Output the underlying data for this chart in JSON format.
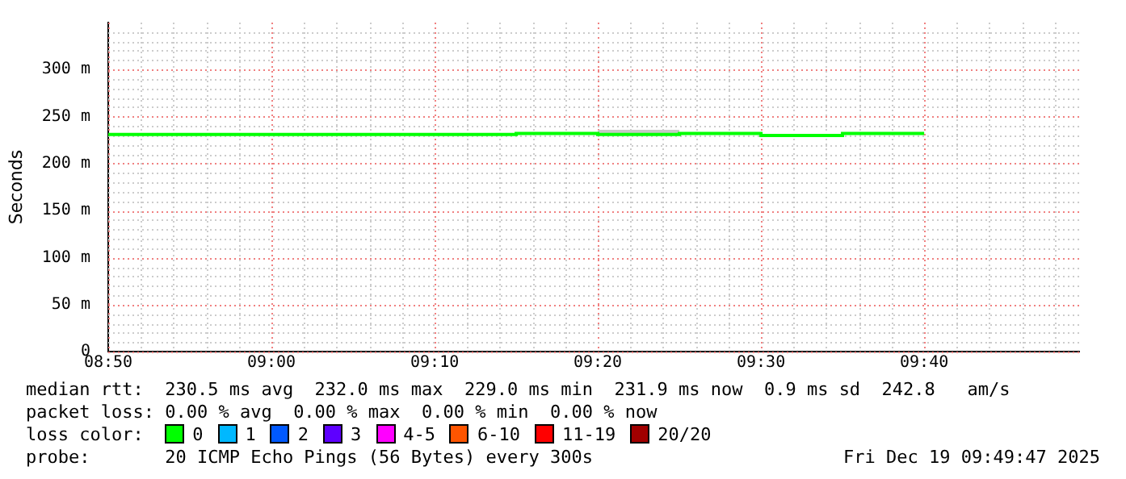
{
  "chart_data": {
    "type": "step",
    "ylabel": "Seconds",
    "legend_title": "loss color:",
    "legend": "bottom",
    "grid": true,
    "xlim": [
      8.8333,
      9.825
    ],
    "xticks": [
      {
        "value": 8.8333,
        "label": "08:50"
      },
      {
        "value": 9,
        "label": "09:00"
      },
      {
        "value": 9.1667,
        "label": "09:10"
      },
      {
        "value": 9.3333,
        "label": "09:20"
      },
      {
        "value": 9.5,
        "label": "09:30"
      },
      {
        "value": 9.6667,
        "label": "09:40"
      }
    ],
    "ylim": [
      0,
      350
    ],
    "yticks": [
      {
        "value": 0,
        "label": "0"
      },
      {
        "value": 50,
        "label": "50 m"
      },
      {
        "value": 100,
        "label": "100 m"
      },
      {
        "value": 150,
        "label": "150 m"
      },
      {
        "value": 200,
        "label": "200 m"
      },
      {
        "value": 250,
        "label": "250 m"
      },
      {
        "value": 300,
        "label": "300 m"
      }
    ],
    "x": [
      8.8333,
      9.25,
      9.3333,
      9.4167,
      9.5,
      9.5833,
      9.6667
    ],
    "series": [
      {
        "name": "0",
        "color": "#00ff00",
        "values": [
          231,
          232,
          231,
          232,
          230,
          232,
          232
        ],
        "lower": [
          null,
          null,
          231,
          231,
          null,
          null,
          null
        ],
        "upper": [
          null,
          null,
          236,
          236,
          null,
          null,
          null
        ]
      },
      {
        "name": "1",
        "color": "#00b8ff",
        "values": [
          null,
          null,
          null,
          null,
          null,
          null,
          null
        ]
      },
      {
        "name": "2",
        "color": "#0059ff",
        "values": [
          null,
          null,
          null,
          null,
          null,
          null,
          null
        ]
      },
      {
        "name": "3",
        "color": "#5e00ff",
        "values": [
          null,
          null,
          null,
          null,
          null,
          null,
          null
        ]
      },
      {
        "name": "4-5",
        "color": "#ff00ff",
        "values": [
          null,
          null,
          null,
          null,
          null,
          null,
          null
        ]
      },
      {
        "name": "6-10",
        "color": "#ff5500",
        "values": [
          null,
          null,
          null,
          null,
          null,
          null,
          null
        ]
      },
      {
        "name": "11-19",
        "color": "#ff0000",
        "values": [
          null,
          null,
          null,
          null,
          null,
          null,
          null
        ]
      },
      {
        "name": "20/20",
        "color": "#a10000",
        "values": [
          null,
          null,
          null,
          null,
          null,
          null,
          null
        ]
      }
    ],
    "annotations": [
      "median rtt:  230.5 ms avg  232.0 ms max  229.0 ms min  231.9 ms now  0.9 ms sd  242.8   am/s",
      "packet loss: 0.00 % avg  0.00 % max  0.00 % min  0.00 % now",
      "probe:       20 ICMP Echo Pings (56 Bytes) every 300s",
      "Fri Dec 19 09:49:47 2025"
    ]
  }
}
